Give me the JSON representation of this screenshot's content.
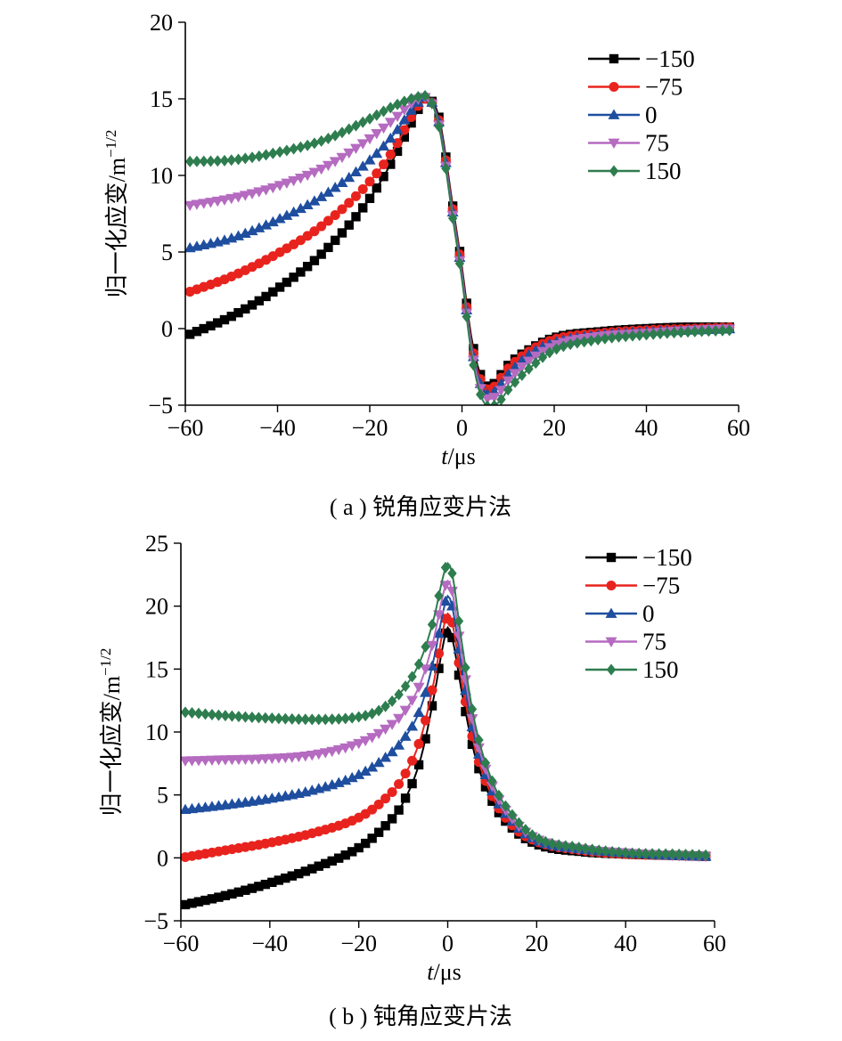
{
  "charts": [
    {
      "id": "a",
      "caption": "( a ) 锐角应变片法",
      "xlabel_italic": "t",
      "xlabel_rest": "/μs",
      "ylabel": "归一化应变/m",
      "ylabel_sup": "−1/2",
      "xticks": [
        "−60",
        "−40",
        "−20",
        "0",
        "20",
        "40",
        "60"
      ],
      "yticks": [
        "−5",
        "0",
        "5",
        "10",
        "15",
        "20"
      ]
    },
    {
      "id": "b",
      "caption": "( b ) 钝角应变片法",
      "xlabel_italic": "t",
      "xlabel_rest": "/μs",
      "ylabel": "归一化应变/m",
      "ylabel_sup": "−1/2",
      "xticks": [
        "−60",
        "−40",
        "−20",
        "0",
        "20",
        "40",
        "60"
      ],
      "yticks": [
        "−5",
        "0",
        "5",
        "10",
        "15",
        "20",
        "25"
      ]
    }
  ],
  "chart_data": [
    {
      "type": "line",
      "xlabel": "t/μs",
      "ylabel": "归一化应变/m−1/2",
      "xlim": [
        -60,
        60
      ],
      "ylim": [
        -5,
        20
      ],
      "grid": false,
      "legend_position": "top-right",
      "x": [
        -60,
        -50,
        -40,
        -30,
        -20,
        -15,
        -10,
        -8,
        -5,
        -2,
        0,
        2,
        4,
        6,
        8,
        10,
        15,
        20,
        30,
        40,
        50,
        60
      ],
      "series": [
        {
          "name": "−150",
          "color": "#000000",
          "marker": "square",
          "values": [
            -0.5,
            0.8,
            2.6,
            5.0,
            8.5,
            11.0,
            14.0,
            15.0,
            13.8,
            8.0,
            4.0,
            -0.5,
            -3.0,
            -3.8,
            -3.2,
            -2.4,
            -1.3,
            -0.6,
            -0.2,
            0.0,
            0.1,
            0.1
          ]
        },
        {
          "name": "−75",
          "color": "#e8231e",
          "marker": "circle",
          "values": [
            2.3,
            3.4,
            4.9,
            6.8,
            9.6,
            11.6,
            14.3,
            15.0,
            13.6,
            7.8,
            3.8,
            -0.8,
            -3.3,
            -4.0,
            -3.4,
            -2.6,
            -1.4,
            -0.7,
            -0.3,
            -0.1,
            0.0,
            0.1
          ]
        },
        {
          "name": "0",
          "color": "#1f4e9f",
          "marker": "triangle-up",
          "values": [
            5.2,
            5.9,
            7.1,
            8.7,
            11.0,
            12.6,
            14.6,
            15.1,
            13.5,
            7.6,
            3.6,
            -1.0,
            -3.6,
            -4.3,
            -3.8,
            -3.0,
            -1.6,
            -0.9,
            -0.4,
            -0.2,
            -0.1,
            0.0
          ]
        },
        {
          "name": "75",
          "color": "#b56bc0",
          "marker": "triangle-down",
          "values": [
            8.0,
            8.5,
            9.3,
            10.5,
            12.4,
            13.6,
            14.9,
            15.1,
            13.3,
            7.4,
            3.4,
            -1.2,
            -3.9,
            -4.6,
            -4.2,
            -3.4,
            -2.0,
            -1.1,
            -0.5,
            -0.3,
            -0.1,
            0.0
          ]
        },
        {
          "name": "150",
          "color": "#2e7d4f",
          "marker": "diamond",
          "values": [
            10.9,
            11.0,
            11.5,
            12.3,
            13.7,
            14.5,
            15.1,
            15.2,
            13.2,
            7.2,
            3.2,
            -1.5,
            -4.3,
            -5.1,
            -4.8,
            -4.0,
            -2.5,
            -1.4,
            -0.7,
            -0.4,
            -0.2,
            -0.1
          ]
        }
      ]
    },
    {
      "type": "line",
      "xlabel": "t/μs",
      "ylabel": "归一化应变/m−1/2",
      "xlim": [
        -60,
        60
      ],
      "ylim": [
        -5,
        25
      ],
      "grid": false,
      "legend_position": "top-right",
      "x": [
        -60,
        -50,
        -40,
        -30,
        -20,
        -15,
        -10,
        -6,
        -3,
        -1,
        0,
        1,
        3,
        6,
        10,
        15,
        20,
        30,
        40,
        50,
        60
      ],
      "series": [
        {
          "name": "−150",
          "color": "#000000",
          "marker": "square",
          "values": [
            -3.8,
            -3.0,
            -2.0,
            -0.8,
            0.8,
            2.2,
            4.4,
            8.0,
            13.0,
            17.0,
            18.3,
            17.5,
            13.5,
            8.3,
            4.5,
            2.2,
            1.1,
            0.5,
            0.3,
            0.2,
            0.1
          ]
        },
        {
          "name": "−75",
          "color": "#e8231e",
          "marker": "circle",
          "values": [
            0.0,
            0.6,
            1.2,
            2.0,
            3.2,
            4.4,
            6.4,
            9.6,
            14.2,
            18.2,
            19.4,
            18.7,
            14.4,
            8.9,
            4.9,
            2.4,
            1.3,
            0.6,
            0.3,
            0.2,
            0.1
          ]
        },
        {
          "name": "0",
          "color": "#1f4e9f",
          "marker": "triangle-up",
          "values": [
            3.8,
            4.2,
            4.7,
            5.4,
            6.6,
            7.7,
            9.4,
            12.0,
            16.0,
            19.6,
            20.8,
            20.0,
            15.4,
            9.6,
            5.3,
            2.7,
            1.4,
            0.7,
            0.4,
            0.2,
            0.1
          ]
        },
        {
          "name": "75",
          "color": "#b56bc0",
          "marker": "triangle-down",
          "values": [
            7.7,
            7.8,
            7.9,
            8.2,
            9.1,
            10.0,
            11.5,
            14.0,
            17.6,
            21.0,
            22.0,
            21.2,
            16.4,
            10.2,
            5.7,
            2.9,
            1.5,
            0.7,
            0.4,
            0.2,
            0.1
          ]
        },
        {
          "name": "150",
          "color": "#2e7d4f",
          "marker": "diamond",
          "values": [
            11.6,
            11.3,
            11.1,
            11.0,
            11.2,
            11.8,
            13.4,
            15.8,
            19.2,
            22.4,
            23.4,
            22.6,
            17.5,
            10.9,
            6.1,
            3.2,
            1.6,
            0.8,
            0.4,
            0.3,
            0.2
          ]
        }
      ]
    }
  ]
}
